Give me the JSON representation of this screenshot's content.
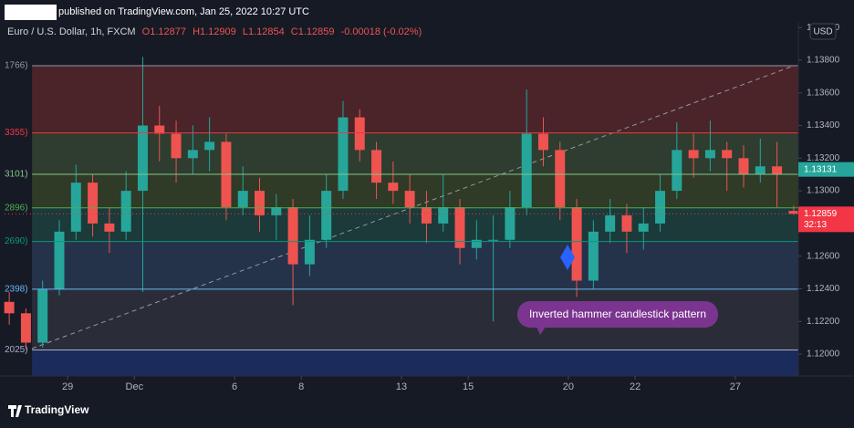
{
  "header": {
    "published": "published on TradingView.com, Jan 25, 2022 10:27 UTC"
  },
  "footer": {
    "brand": "TradingView"
  },
  "chart_data": {
    "type": "candlestick",
    "title": "Euro / U.S. Dollar, 1h, FXCM",
    "ohlc_legend": [
      "O1.12877",
      "H1.12909",
      "L1.12854",
      "C1.12859",
      "-0.00018 (-0.02%)"
    ],
    "currency": "USD",
    "up_color": "#26a69a",
    "down_color": "#ef5350",
    "x": [
      -1.75,
      -1.25,
      -0.75,
      -0.25,
      0.25,
      0.75,
      1.25,
      1.75,
      2.25,
      2.75,
      3.25,
      3.75,
      4.25,
      4.75,
      5.25,
      5.75,
      6.25,
      6.75,
      7.25,
      7.75,
      8.25,
      8.75,
      9.25,
      9.75,
      10.25,
      10.75,
      11.25,
      11.75,
      12.25,
      12.75,
      13.25,
      13.75,
      14.25,
      14.75,
      15.25,
      15.75,
      16.25,
      16.75,
      17.25,
      17.75,
      18.25,
      18.75,
      19.25,
      19.75,
      20.25,
      20.75,
      21.25,
      21.75
    ],
    "open": [
      1.1232,
      1.1225,
      1.1207,
      1.124,
      1.1275,
      1.1305,
      1.128,
      1.1275,
      1.13,
      1.134,
      1.1335,
      1.132,
      1.1325,
      1.133,
      1.129,
      1.13,
      1.1285,
      1.129,
      1.1255,
      1.127,
      1.13,
      1.1345,
      1.1325,
      1.1305,
      1.13,
      1.129,
      1.128,
      1.129,
      1.1265,
      1.127,
      1.127,
      1.129,
      1.1335,
      1.1325,
      1.129,
      1.1245,
      1.1275,
      1.1285,
      1.1275,
      1.128,
      1.13,
      1.1325,
      1.132,
      1.1325,
      1.132,
      1.131,
      1.1315,
      1.12877
    ],
    "high": [
      1.1238,
      1.1228,
      1.1245,
      1.1282,
      1.1316,
      1.131,
      1.129,
      1.1312,
      1.1382,
      1.1352,
      1.1343,
      1.134,
      1.1345,
      1.1335,
      1.1315,
      1.1308,
      1.1298,
      1.1295,
      1.1285,
      1.131,
      1.1355,
      1.135,
      1.133,
      1.1318,
      1.131,
      1.13,
      1.131,
      1.1295,
      1.1282,
      1.1285,
      1.13,
      1.1362,
      1.1345,
      1.133,
      1.1295,
      1.1282,
      1.1295,
      1.1292,
      1.129,
      1.131,
      1.1342,
      1.1335,
      1.1343,
      1.133,
      1.1328,
      1.1332,
      1.133,
      1.12909
    ],
    "low": [
      1.1218,
      1.1203,
      1.1204,
      1.1236,
      1.127,
      1.1272,
      1.1262,
      1.127,
      1.1238,
      1.1318,
      1.1305,
      1.131,
      1.1312,
      1.1282,
      1.1285,
      1.1275,
      1.127,
      1.123,
      1.1248,
      1.1265,
      1.1295,
      1.1318,
      1.1295,
      1.1292,
      1.128,
      1.1268,
      1.1275,
      1.1255,
      1.1258,
      1.122,
      1.1265,
      1.1285,
      1.1315,
      1.1282,
      1.1235,
      1.124,
      1.1268,
      1.1262,
      1.1264,
      1.1275,
      1.1295,
      1.1308,
      1.1312,
      1.13,
      1.1302,
      1.1305,
      1.129,
      1.12854
    ],
    "close": [
      1.1225,
      1.1207,
      1.124,
      1.1275,
      1.1305,
      1.128,
      1.1275,
      1.13,
      1.134,
      1.1335,
      1.132,
      1.1325,
      1.133,
      1.129,
      1.13,
      1.1285,
      1.129,
      1.1255,
      1.127,
      1.13,
      1.1345,
      1.1325,
      1.1305,
      1.13,
      1.129,
      1.128,
      1.129,
      1.1265,
      1.127,
      1.127,
      1.129,
      1.1335,
      1.1325,
      1.129,
      1.1245,
      1.1275,
      1.1285,
      1.1275,
      1.128,
      1.13,
      1.1325,
      1.132,
      1.1325,
      1.132,
      1.131,
      1.1315,
      1.131,
      1.12859
    ],
    "xlim": [
      -1.89,
      21.89
    ],
    "xticks": [
      {
        "value": 0,
        "label": "29"
      },
      {
        "value": 2,
        "label": "Dec"
      },
      {
        "value": 5,
        "label": "6"
      },
      {
        "value": 7,
        "label": "8"
      },
      {
        "value": 10,
        "label": "13"
      },
      {
        "value": 12,
        "label": "15"
      },
      {
        "value": 15,
        "label": "20"
      },
      {
        "value": 17,
        "label": "22"
      },
      {
        "value": 20,
        "label": "27"
      }
    ],
    "ylim": [
      1.11866,
      1.14029
    ],
    "yticks": [
      {
        "value": 1.12,
        "label": "1.12000"
      },
      {
        "value": 1.122,
        "label": "1.12200"
      },
      {
        "value": 1.124,
        "label": "1.12400"
      },
      {
        "value": 1.126,
        "label": "1.12600"
      },
      {
        "value": 1.128,
        "label": "1.12800"
      },
      {
        "value": 1.13,
        "label": "1.13000"
      },
      {
        "value": 1.132,
        "label": "1.13200"
      },
      {
        "value": 1.134,
        "label": "1.13400"
      },
      {
        "value": 1.136,
        "label": "1.13600"
      },
      {
        "value": 1.138,
        "label": "1.13800"
      },
      {
        "value": 1.14,
        "label": "1.14000"
      }
    ],
    "fib_levels": [
      {
        "value": 1.13766,
        "label": "1766)",
        "color": "#9598a1",
        "fill": "#4a2429"
      },
      {
        "value": 1.13355,
        "label": "3355)",
        "color": "#f23645",
        "fill": "#2e3d2f"
      },
      {
        "value": 1.13101,
        "label": "3101)",
        "color": "#81c784",
        "fill": "#2f3a27"
      },
      {
        "value": 1.12896,
        "label": "2896)",
        "color": "#4caf50",
        "fill": "#1b3a39"
      },
      {
        "value": 1.1269,
        "label": "2690)",
        "color": "#089981",
        "fill": "#25334a"
      },
      {
        "value": 1.12398,
        "label": "2398)",
        "color": "#64b5f6",
        "fill": "#2a2d38"
      },
      {
        "value": 1.12025,
        "label": "2025)",
        "color": "#a3b1c9",
        "fill": "#1b2b5c"
      }
    ],
    "price_labels": [
      {
        "value": 1.13131,
        "color": "#26a69a"
      },
      {
        "value": 1.12859,
        "countdown": "32:13",
        "color": "#f23645"
      }
    ],
    "annotation": "Inverted hammer candlestick pattern"
  }
}
